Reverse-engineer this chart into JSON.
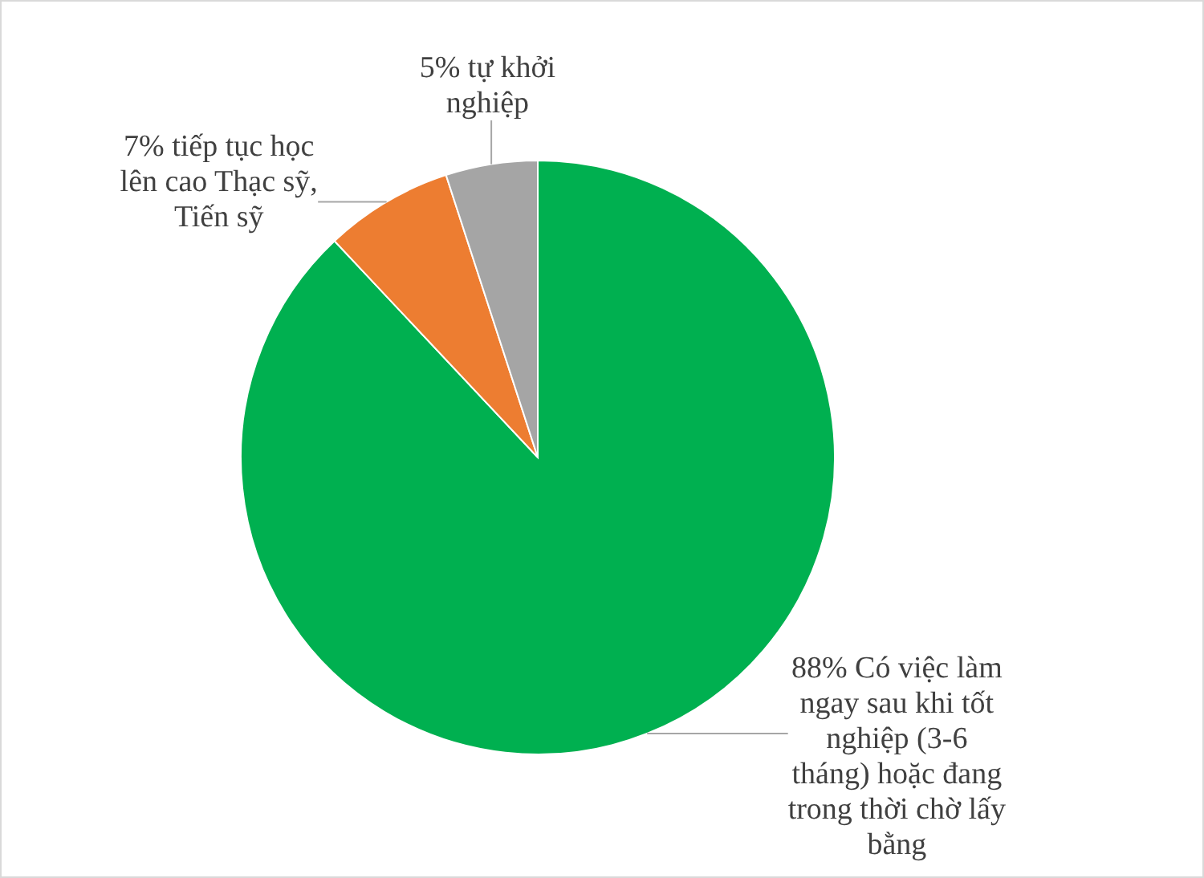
{
  "chart_data": {
    "type": "pie",
    "categories": [
      "Có việc làm ngay sau khi tốt nghiệp (3-6 tháng) hoặc đang trong thời chờ lấy bằng",
      "tiếp tục học lên cao Thạc sỹ, Tiến sỹ",
      "tự khởi nghiệp"
    ],
    "values": [
      88,
      7,
      5
    ],
    "colors": [
      "#00b050",
      "#ed7d31",
      "#a5a5a5"
    ],
    "value_labels": [
      "88%",
      "7%",
      "5%"
    ]
  }
}
